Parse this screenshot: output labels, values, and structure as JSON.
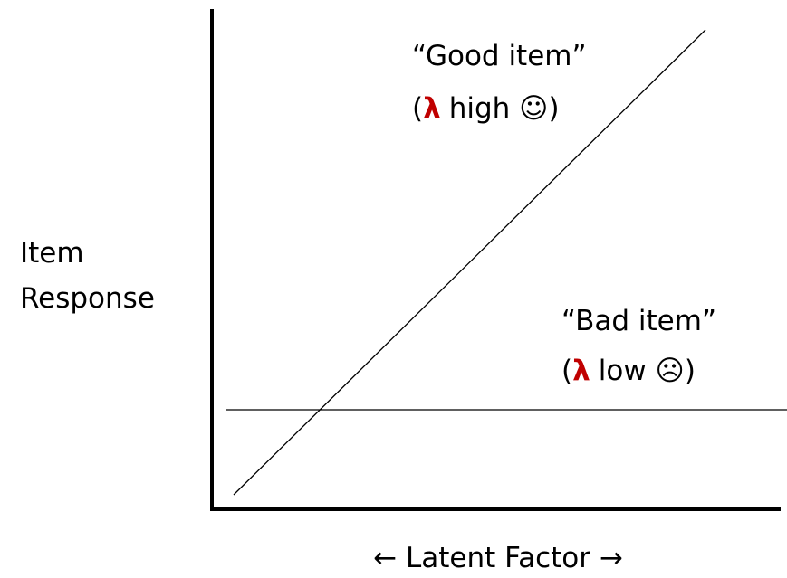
{
  "y_axis_label": {
    "lines": [
      "Item",
      "Response"
    ]
  },
  "x_axis_label": "← Latent Factor →",
  "annotations": [
    {
      "title": "“Good item”",
      "note": {
        "open": "(",
        "symbol": "λ",
        "rest": "high ☺)"
      }
    },
    {
      "title": "“Bad item”",
      "note": {
        "open": "(",
        "symbol": "λ",
        "rest": "low ☹)"
      }
    }
  ]
}
